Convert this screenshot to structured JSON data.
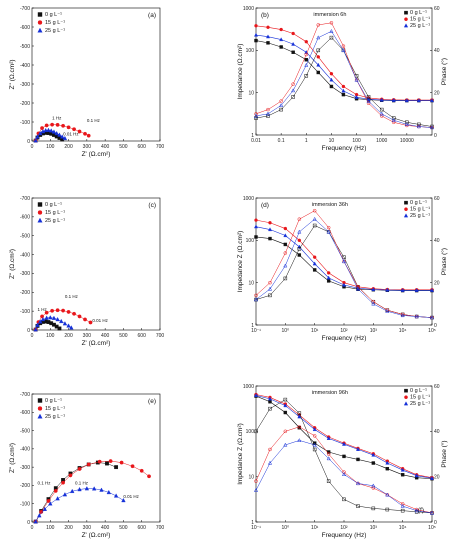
{
  "legend_labels": [
    "0 g L⁻¹",
    "15 g L⁻¹",
    "25 g L⁻¹"
  ],
  "series_colors": [
    "#111111",
    "#e8161b",
    "#1530d8"
  ],
  "chart_data": [
    {
      "type": "scatter",
      "panel": "(a)",
      "xlabel": "Z' (Ω.cm²)",
      "ylabel": "Z'' (Ω.cm²)",
      "xlim": [
        0,
        700
      ],
      "ylim": [
        -700,
        0
      ],
      "xticks": [
        0,
        100,
        200,
        300,
        400,
        500,
        600,
        700
      ],
      "yticks": [
        -700,
        -600,
        -500,
        -400,
        -300,
        -200,
        -100,
        0
      ],
      "legend_position": "top-left",
      "series": [
        {
          "name": "0 g L⁻¹",
          "x": [
            20,
            30,
            45,
            60,
            75,
            90,
            105,
            120,
            135,
            150,
            165
          ],
          "y": [
            -2,
            -18,
            -32,
            -40,
            -43,
            -42,
            -38,
            -32,
            -24,
            -16,
            -8
          ]
        },
        {
          "name": "15 g L⁻¹",
          "x": [
            20,
            35,
            55,
            80,
            110,
            140,
            170,
            200,
            230,
            260,
            290,
            310
          ],
          "y": [
            -2,
            -40,
            -68,
            -82,
            -86,
            -85,
            -80,
            -72,
            -62,
            -50,
            -38,
            -28
          ]
        },
        {
          "name": "25 g L⁻¹",
          "x": [
            20,
            30,
            45,
            60,
            75,
            90,
            105,
            120,
            135,
            150,
            165,
            180
          ],
          "y": [
            -2,
            -22,
            -40,
            -50,
            -56,
            -57,
            -54,
            -48,
            -40,
            -32,
            -22,
            -14
          ]
        }
      ],
      "annotations": [
        {
          "text": "1 Hz",
          "x": 110,
          "y": -112
        },
        {
          "text": "0.1 Hz",
          "x": 300,
          "y": -100
        },
        {
          "text": "0.01 Hz",
          "x": 170,
          "y": -30
        }
      ]
    },
    {
      "type": "line",
      "panel": "(b)",
      "inset_title": "immersion 6h",
      "xlabel": "Frequency (Hz)",
      "ylabel": "Impedance (Ω.cm²)",
      "y2label": "Phase (°)",
      "xscale": "log",
      "yscale": "log",
      "xlim": [
        0.01,
        100000
      ],
      "ylim": [
        1,
        1000
      ],
      "y2lim": [
        0,
        60
      ],
      "xtick_labels": [
        "0.01",
        "0.1",
        "1",
        "10",
        "100",
        "1000",
        "10000"
      ],
      "ytick_labels": [
        "1",
        "10",
        "100",
        "1000"
      ],
      "y2ticks": [
        0,
        20,
        40,
        60
      ],
      "legend_position": "top-right",
      "x": [
        0.01,
        0.03,
        0.1,
        0.3,
        1,
        3,
        10,
        30,
        100,
        300,
        1000,
        3000,
        10000,
        30000,
        100000
      ],
      "impedance": [
        {
          "name": "0 g L⁻¹",
          "values": [
            170,
            150,
            120,
            90,
            60,
            30,
            14,
            9,
            7.2,
            6.8,
            6.6,
            6.5,
            6.5,
            6.5,
            6.5
          ]
        },
        {
          "name": "15 g L⁻¹",
          "values": [
            380,
            350,
            310,
            250,
            160,
            70,
            28,
            14,
            9,
            7.5,
            7,
            6.8,
            6.7,
            6.7,
            6.7
          ]
        },
        {
          "name": "25 g L⁻¹",
          "values": [
            230,
            210,
            180,
            140,
            90,
            45,
            20,
            11,
            7.8,
            7,
            6.7,
            6.6,
            6.5,
            6.5,
            6.5
          ]
        }
      ],
      "phase": [
        {
          "name": "0 g L⁻¹",
          "values": [
            8,
            9,
            12,
            18,
            28,
            40,
            46,
            40,
            28,
            18,
            12,
            8,
            6,
            5,
            4
          ]
        },
        {
          "name": "15 g L⁻¹",
          "values": [
            10,
            12,
            16,
            24,
            38,
            52,
            53,
            42,
            26,
            15,
            9,
            6,
            4.5,
            4,
            3.5
          ]
        },
        {
          "name": "25 g L⁻¹",
          "values": [
            9,
            10,
            14,
            21,
            33,
            46,
            49,
            40,
            26,
            16,
            10,
            7,
            5,
            4,
            3.5
          ]
        }
      ]
    },
    {
      "type": "scatter",
      "panel": "(c)",
      "xlabel": "Z' (Ω.cm²)",
      "ylabel": "Z'' (Ω.cm²)",
      "xlim": [
        0,
        700
      ],
      "ylim": [
        -700,
        0
      ],
      "xticks": [
        0,
        100,
        200,
        300,
        400,
        500,
        600,
        700
      ],
      "yticks": [
        -700,
        -600,
        -500,
        -400,
        -300,
        -200,
        -100,
        0
      ],
      "legend_position": "top-left",
      "series": [
        {
          "name": "0 g L⁻¹",
          "x": [
            20,
            30,
            45,
            60,
            75,
            90,
            105,
            120,
            135,
            150
          ],
          "y": [
            -2,
            -22,
            -36,
            -43,
            -45,
            -42,
            -36,
            -28,
            -18,
            -8
          ]
        },
        {
          "name": "15 g L⁻¹",
          "x": [
            20,
            35,
            55,
            80,
            110,
            140,
            170,
            200,
            230,
            260,
            290,
            320
          ],
          "y": [
            -2,
            -42,
            -72,
            -92,
            -102,
            -105,
            -103,
            -96,
            -86,
            -72,
            -56,
            -40
          ]
        },
        {
          "name": "25 g L⁻¹",
          "x": [
            20,
            30,
            45,
            60,
            80,
            100,
            120,
            140,
            160,
            180,
            200,
            215
          ],
          "y": [
            -2,
            -26,
            -44,
            -56,
            -64,
            -66,
            -63,
            -56,
            -46,
            -34,
            -22,
            -12
          ]
        }
      ],
      "annotations": [
        {
          "text": "1 Hz",
          "x": 30,
          "y": -100
        },
        {
          "text": "0.1 Hz",
          "x": 180,
          "y": -170
        },
        {
          "text": "0.01 Hz",
          "x": 330,
          "y": -42
        }
      ]
    },
    {
      "type": "line",
      "panel": "(d)",
      "inset_title": "immersion 36h",
      "xlabel": "Frequency (Hz)",
      "ylabel": "Impedance Z (Ω.cm²)",
      "y2label": "Phase (°)",
      "xscale": "log",
      "yscale": "log",
      "xlim": [
        0.1,
        100000
      ],
      "ylim": [
        1,
        1000
      ],
      "y2lim": [
        0,
        60
      ],
      "xtick_labels": [
        "10⁻¹",
        "10⁰",
        "10¹",
        "10²",
        "10³",
        "10⁴",
        "10⁵"
      ],
      "ytick_labels": [
        "1",
        "10",
        "100",
        "1000"
      ],
      "y2ticks": [
        0,
        20,
        40,
        60
      ],
      "legend_position": "top-right",
      "x": [
        0.1,
        0.3,
        1,
        3,
        10,
        30,
        100,
        300,
        1000,
        3000,
        10000,
        30000,
        100000
      ],
      "impedance": [
        {
          "name": "0 g L⁻¹",
          "values": [
            120,
            110,
            80,
            45,
            20,
            11,
            8,
            7,
            6.8,
            6.6,
            6.5,
            6.5,
            6.5
          ]
        },
        {
          "name": "15 g L⁻¹",
          "values": [
            300,
            260,
            190,
            100,
            40,
            17,
            10,
            8,
            7.2,
            6.9,
            6.8,
            6.8,
            6.8
          ]
        },
        {
          "name": "25 g L⁻¹",
          "values": [
            210,
            180,
            130,
            70,
            28,
            13,
            8.8,
            7.4,
            6.9,
            6.7,
            6.6,
            6.6,
            6.6
          ]
        }
      ],
      "phase": [
        {
          "name": "0 g L⁻¹",
          "values": [
            12,
            14,
            22,
            36,
            47,
            44,
            32,
            18,
            11,
            7,
            5,
            4,
            3.5
          ]
        },
        {
          "name": "15 g L⁻¹",
          "values": [
            14,
            20,
            34,
            50,
            54,
            46,
            30,
            18,
            11,
            7,
            5,
            4,
            3.5
          ]
        },
        {
          "name": "25 g L⁻¹",
          "values": [
            12,
            17,
            28,
            44,
            50,
            44,
            30,
            17,
            10,
            6.5,
            4.5,
            4,
            3.5
          ]
        }
      ]
    },
    {
      "type": "scatter",
      "panel": "(e)",
      "xlabel": "Z' (Ω.cm²)",
      "ylabel": "Z'' (Ω.cm²)",
      "xlim": [
        0,
        700
      ],
      "ylim": [
        -700,
        0
      ],
      "xticks": [
        0,
        100,
        200,
        300,
        400,
        500,
        600,
        700
      ],
      "yticks": [
        -700,
        -600,
        -500,
        -400,
        -300,
        -200,
        -100,
        0
      ],
      "legend_position": "top-left",
      "series": [
        {
          "name": "0 g L⁻¹",
          "x": [
            20,
            50,
            90,
            130,
            170,
            210,
            260,
            310,
            360,
            410,
            460
          ],
          "y": [
            -2,
            -60,
            -125,
            -185,
            -230,
            -265,
            -295,
            -315,
            -325,
            -320,
            -300
          ]
        },
        {
          "name": "15 g L⁻¹",
          "x": [
            20,
            50,
            90,
            130,
            170,
            210,
            260,
            310,
            370,
            430,
            490,
            550,
            600,
            640
          ],
          "y": [
            -2,
            -55,
            -115,
            -170,
            -215,
            -255,
            -290,
            -315,
            -330,
            -333,
            -325,
            -305,
            -280,
            -250
          ]
        },
        {
          "name": "25 g L⁻¹",
          "x": [
            20,
            40,
            70,
            100,
            140,
            180,
            220,
            260,
            300,
            340,
            380,
            420,
            460,
            500
          ],
          "y": [
            -2,
            -35,
            -70,
            -100,
            -128,
            -150,
            -168,
            -178,
            -183,
            -182,
            -175,
            -162,
            -143,
            -118
          ]
        }
      ],
      "annotations": [
        {
          "text": "0.1 Hz",
          "x": 30,
          "y": -205
        },
        {
          "text": "0.1 Hz",
          "x": 235,
          "y": -205
        },
        {
          "text": "0.01 Hz",
          "x": 500,
          "y": -130
        }
      ]
    },
    {
      "type": "line",
      "panel": "(f)",
      "inset_title": "immersion 96h",
      "xlabel": "Frequency (Hz)",
      "ylabel": "Impedance Z (Ω.cm²)",
      "y2label": "Phase (°)",
      "xscale": "log",
      "yscale": "log",
      "xlim": [
        0.1,
        100000
      ],
      "ylim": [
        1,
        1000
      ],
      "y2lim": [
        0,
        60
      ],
      "xtick_labels": [
        "10⁻¹",
        "10⁰",
        "10¹",
        "10²",
        "10³",
        "10⁴",
        "10⁵"
      ],
      "ytick_labels": [
        "1",
        "10",
        "100",
        "1000"
      ],
      "y2ticks": [
        0,
        20,
        40,
        60
      ],
      "legend_position": "top-right",
      "x": [
        0.1,
        0.3,
        1,
        3,
        10,
        30,
        100,
        300,
        1000,
        3000,
        10000,
        30000,
        100000
      ],
      "impedance": [
        {
          "name": "0 g L⁻¹",
          "values": [
            600,
            450,
            260,
            120,
            55,
            35,
            28,
            24,
            20,
            15,
            11,
            9.5,
            9
          ]
        },
        {
          "name": "15 g L⁻¹",
          "values": [
            650,
            560,
            400,
            230,
            120,
            75,
            55,
            42,
            32,
            22,
            15,
            11,
            9.5
          ]
        },
        {
          "name": "25 g L⁻¹",
          "values": [
            620,
            520,
            370,
            210,
            110,
            70,
            52,
            40,
            30,
            20,
            14,
            10.5,
            9.2
          ]
        }
      ],
      "phase": [
        {
          "name": "0 g L⁻¹",
          "values": [
            40,
            50,
            54,
            48,
            32,
            18,
            10,
            7,
            6,
            5.5,
            5,
            4.5,
            4
          ]
        },
        {
          "name": "15 g L⁻¹",
          "values": [
            18,
            32,
            40,
            42,
            38,
            30,
            22,
            17,
            15,
            12,
            8,
            5.5,
            4
          ]
        },
        {
          "name": "25 g L⁻¹",
          "values": [
            14,
            26,
            34,
            36,
            34,
            28,
            21,
            17,
            16,
            12,
            7,
            5,
            4
          ]
        }
      ]
    }
  ]
}
